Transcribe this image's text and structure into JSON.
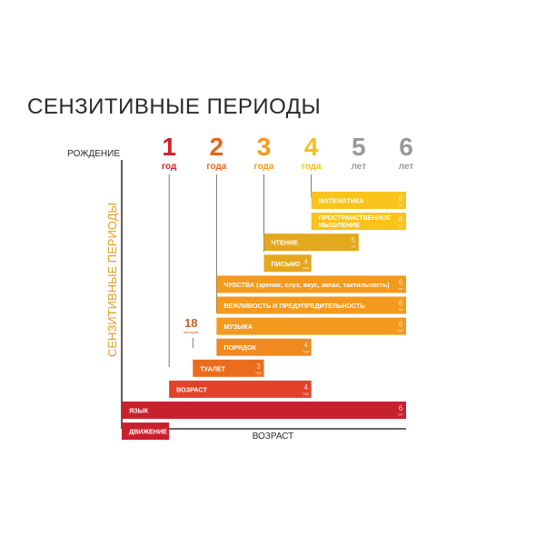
{
  "title": "СЕНЗИТИВНЫЕ ПЕРИОДЫ",
  "chart_data": {
    "type": "bar",
    "title": "СЕНЗИТИВНЫЕ ПЕРИОДЫ",
    "xlabel": "ВОЗРАСТ",
    "ylabel": "СЕНЗИТИВНЫЕ ПЕРИОДЫ",
    "origin_label": "РОЖДЕНИЕ",
    "x_unit": "years",
    "xlim": [
      0,
      6
    ],
    "grid": false,
    "ticks": [
      {
        "value": 1,
        "num": "1",
        "unit": "год",
        "color": "#d32027"
      },
      {
        "value": 2,
        "num": "2",
        "unit": "года",
        "color": "#e8641b"
      },
      {
        "value": 3,
        "num": "3",
        "unit": "года",
        "color": "#f39a1e"
      },
      {
        "value": 4,
        "num": "4",
        "unit": "года",
        "color": "#f7be1c"
      },
      {
        "value": 5,
        "num": "5",
        "unit": "лет",
        "color": "#999999"
      },
      {
        "value": 6,
        "num": "6",
        "unit": "лет",
        "color": "#999999"
      }
    ],
    "annotation": {
      "value": 1.5,
      "num": "18",
      "unit": "месяцев"
    },
    "series": [
      {
        "label": "МАТЕМАТИКА",
        "start": 4,
        "end": 6,
        "end_label": "6",
        "end_unit": "лет",
        "color": "#f9c31c"
      },
      {
        "label": "ПРОСТРАНСТВЕННОЕ МЫШЛЕНИЕ",
        "start": 4,
        "end": 6,
        "end_label": "6",
        "end_unit": "лет",
        "color": "#f9c31c"
      },
      {
        "label": "ЧТЕНИЕ",
        "start": 3,
        "end": 5,
        "end_label": "5",
        "end_unit": "лет",
        "color": "#e4a81e"
      },
      {
        "label": "ПИСЬМО",
        "start": 3,
        "end": 4,
        "end_label": "4",
        "end_unit": "года",
        "color": "#e4a81e"
      },
      {
        "label": "ЧУВСТВА (зрение, слух, вкус, запах, тактильность)",
        "start": 2,
        "end": 6,
        "end_label": "6",
        "end_unit": "лет",
        "color": "#f39a1e"
      },
      {
        "label": "ВЕЖЛИВОСТЬ И ПРЕДУПРЕДИТЕЛЬНОСТЬ",
        "start": 2,
        "end": 6,
        "end_label": "6",
        "end_unit": "лет",
        "color": "#f39a1e"
      },
      {
        "label": "МУЗЫКА",
        "start": 2,
        "end": 6,
        "end_label": "6",
        "end_unit": "лет",
        "color": "#f39a1e"
      },
      {
        "label": "ПОРЯДОК",
        "start": 2,
        "end": 4,
        "end_label": "4",
        "end_unit": "года",
        "color": "#f08a1e"
      },
      {
        "label": "ТУАЛЕТ",
        "start": 1.5,
        "end": 3,
        "end_label": "3",
        "end_unit": "года",
        "color": "#ec6c1d"
      },
      {
        "label": "ВОЗРАСТ",
        "start": 1,
        "end": 4,
        "end_label": "4",
        "end_unit": "года",
        "color": "#e2422a"
      },
      {
        "label": "ЯЗЫК",
        "start": 0,
        "end": 6,
        "end_label": "6",
        "end_unit": "лет",
        "color": "#c8212e"
      },
      {
        "label": "ДВИЖЕНИЕ",
        "start": 0,
        "end": 1,
        "end_label": "",
        "end_unit": "",
        "color": "#c8212e"
      }
    ]
  }
}
